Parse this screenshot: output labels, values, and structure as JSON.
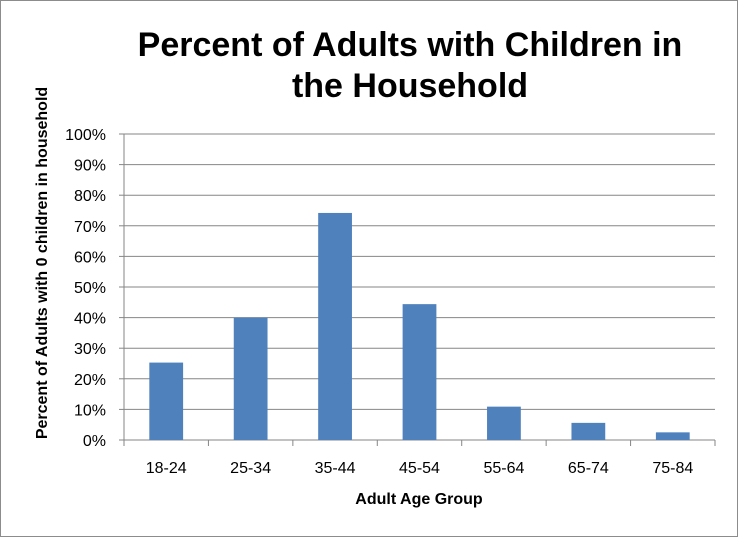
{
  "chart_data": {
    "type": "bar",
    "title_lines": [
      "Percent of Adults with Children in",
      "the Household"
    ],
    "xlabel": "Adult Age Group",
    "ylabel": "Percent of Adults with 0 children in household",
    "categories": [
      "18-24",
      "25-34",
      "35-44",
      "45-54",
      "55-64",
      "65-74",
      "75-84"
    ],
    "values": [
      25.3,
      40.0,
      74.2,
      44.4,
      10.9,
      5.6,
      2.5
    ],
    "ylim": [
      0,
      100
    ],
    "yticks": [
      0,
      10,
      20,
      30,
      40,
      50,
      60,
      70,
      80,
      90,
      100
    ],
    "ytick_labels": [
      "0%",
      "10%",
      "20%",
      "30%",
      "40%",
      "50%",
      "60%",
      "70%",
      "80%",
      "90%",
      "100%"
    ],
    "grid": true,
    "legend": "none",
    "bar_color": "#4f81bd",
    "grid_color": "#868686"
  }
}
